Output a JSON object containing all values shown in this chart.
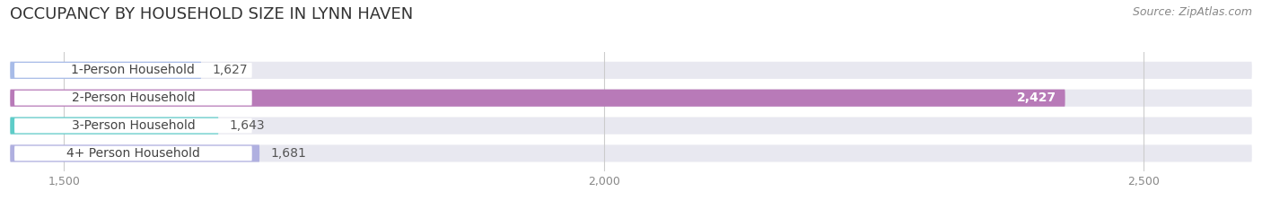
{
  "title": "OCCUPANCY BY HOUSEHOLD SIZE IN LYNN HAVEN",
  "source": "Source: ZipAtlas.com",
  "categories": [
    "1-Person Household",
    "2-Person Household",
    "3-Person Household",
    "4+ Person Household"
  ],
  "values": [
    1627,
    2427,
    1643,
    1681
  ],
  "bar_colors": [
    "#a8bce8",
    "#b87ab8",
    "#5eccc8",
    "#b0b0e0"
  ],
  "bar_bg_color": "#e8e8f0",
  "value_colors": [
    "#555555",
    "#ffffff",
    "#555555",
    "#555555"
  ],
  "xlim_min": 1450,
  "xlim_max": 2600,
  "xticks": [
    1500,
    2000,
    2500
  ],
  "background_color": "#ffffff",
  "title_fontsize": 13,
  "source_fontsize": 9,
  "label_fontsize": 10,
  "value_fontsize": 10
}
